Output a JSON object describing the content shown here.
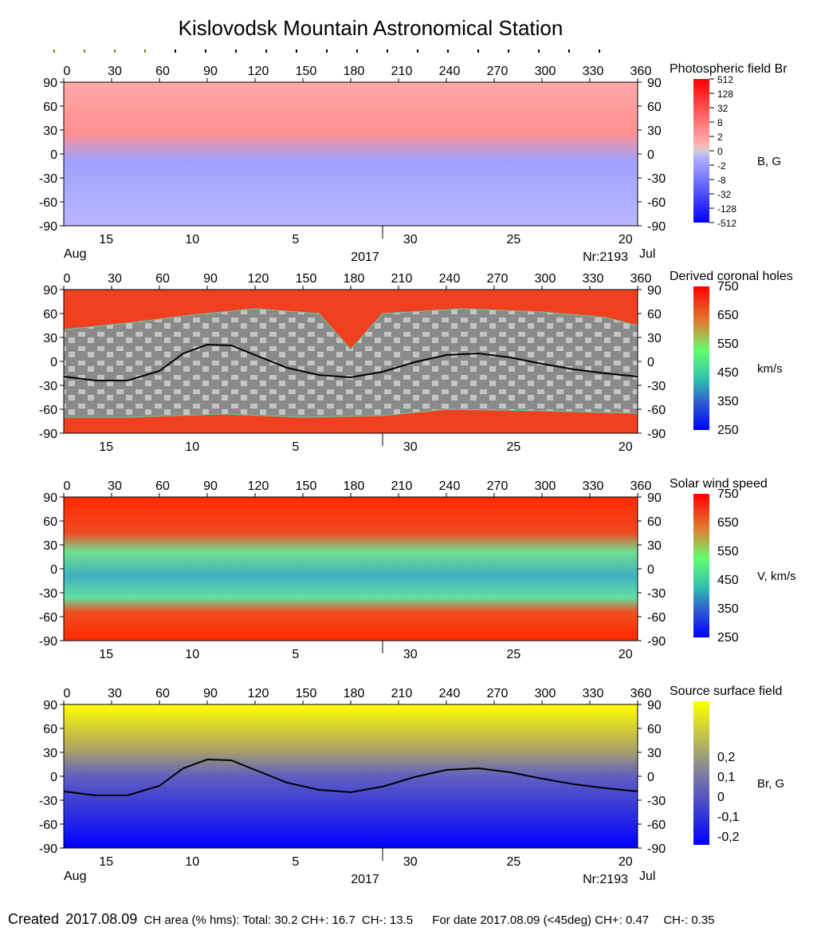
{
  "title": "Kislovodsk Mountain Astronomical Station",
  "colors": {
    "field_pos": "#ff8080",
    "field_neg": "#8080ff",
    "ch_gray_dark": "#808080",
    "ch_gray_light": "#c0c0c0",
    "wind_low": "#0000ff",
    "wind_mid": "#40ff80",
    "wind_high": "#ff2000",
    "ss_pos": "#ffff00",
    "ss_neg": "#0000ff"
  },
  "axes": {
    "lon_ticks": [
      "0",
      "30",
      "60",
      "90",
      "120",
      "150",
      "180",
      "210",
      "240",
      "270",
      "300",
      "330",
      "360"
    ],
    "lat_ticks": [
      "90",
      "60",
      "30",
      "0",
      "-30",
      "-60",
      "-90"
    ],
    "date_ticks": [
      "15",
      "10",
      "5",
      "30",
      "25",
      "20"
    ],
    "month_left": "Aug",
    "month_right": "Jul",
    "year": "2017",
    "rotation": "Nr:2193"
  },
  "chart_data": [
    {
      "type": "heatmap",
      "title": "Photospheric field Br",
      "colorbar_label": "B, G",
      "colorbar_ticks": [
        "512",
        "128",
        "32",
        "8",
        "2",
        "0",
        "-2",
        "-8",
        "-32",
        "-128",
        "-512"
      ],
      "xlim": [
        0,
        360
      ],
      "ylim": [
        -90,
        90
      ]
    },
    {
      "type": "heatmap",
      "title": "Derived coronal holes",
      "colorbar_label": "km/s",
      "colorbar_ticks": [
        "750",
        "650",
        "550",
        "450",
        "350",
        "250"
      ],
      "xlim": [
        0,
        360
      ],
      "ylim": [
        -90,
        90
      ],
      "neutral_line": {
        "lon": [
          0,
          20,
          40,
          60,
          75,
          90,
          105,
          120,
          140,
          160,
          180,
          200,
          220,
          240,
          260,
          280,
          300,
          320,
          340,
          360
        ],
        "lat": [
          -19,
          -24,
          -24,
          -12,
          10,
          21,
          20,
          8,
          -8,
          -17,
          -20,
          -13,
          -1,
          8,
          10,
          5,
          -3,
          -10,
          -15,
          -19
        ]
      }
    },
    {
      "type": "heatmap",
      "title": "Solar wind speed",
      "colorbar_label": "V, km/s",
      "colorbar_ticks": [
        "750",
        "650",
        "550",
        "450",
        "350",
        "250"
      ],
      "xlim": [
        0,
        360
      ],
      "ylim": [
        -90,
        90
      ]
    },
    {
      "type": "heatmap",
      "title": "Source surface field",
      "colorbar_label": "Br, G",
      "colorbar_ticks": [
        "0,2",
        "0,1",
        "0",
        "-0,1",
        "-0,2"
      ],
      "xlim": [
        0,
        360
      ],
      "ylim": [
        -90,
        90
      ],
      "neutral_line": {
        "lon": [
          0,
          20,
          40,
          60,
          75,
          90,
          105,
          120,
          140,
          160,
          180,
          200,
          220,
          240,
          260,
          280,
          300,
          320,
          340,
          360
        ],
        "lat": [
          -19,
          -24,
          -24,
          -12,
          10,
          21,
          20,
          8,
          -8,
          -17,
          -20,
          -13,
          -1,
          8,
          10,
          5,
          -3,
          -10,
          -15,
          -19
        ]
      }
    }
  ],
  "footer": {
    "created_label": "Created",
    "created_date": "2017.08.09",
    "ch_area": "CH area (% hms): Total: 30.2 CH+: 16.7",
    "ch_minus": "CH-: 13.5",
    "for_date": "For date 2017.08.09 (<45deg) CH+: 0.47",
    "ch_minus_date": "CH-: 0.35"
  }
}
